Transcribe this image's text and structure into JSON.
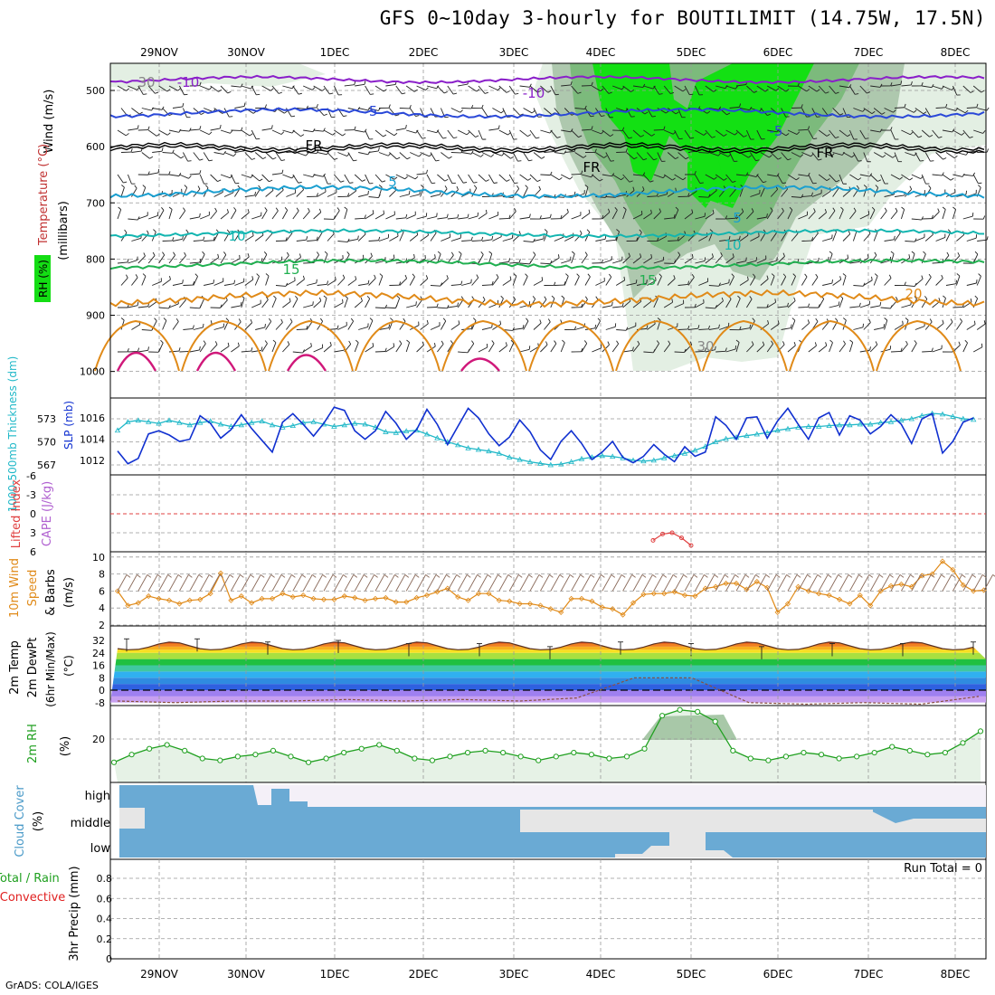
{
  "title": "GFS 0~10day 3-hourly for BOUTILIMIT (14.75W, 17.5N)",
  "footer": "GrADS: COLA/IGES",
  "dates": [
    "29NOV",
    "30NOV",
    "1DEC",
    "2DEC",
    "3DEC",
    "4DEC",
    "5DEC",
    "6DEC",
    "7DEC",
    "8DEC"
  ],
  "colors": {
    "purple": "#8a1fc9",
    "blue": "#2a48d8",
    "teal": "#1a9fd0",
    "cyan": "#12b5b0",
    "green": "#20b050",
    "orange": "#e08a18",
    "magenta": "#d0187a",
    "black": "#000000",
    "rh_light": "#e3efe3",
    "rh_mid": "#aec8ae",
    "rh_dark": "#7cba7c",
    "rh_bright": "#13e013"
  },
  "panels": {
    "upper": {
      "axis_label_rh": "RH (%)",
      "axis_label_temp": "Temperature (°C)",
      "axis_label_wind": "Wind (m/s)",
      "axis_label_units": "(millibars)",
      "yticks": [
        "500",
        "600",
        "700",
        "800",
        "900",
        "1000"
      ],
      "contour_labels": [
        {
          "text": "-10",
          "color": "purple"
        },
        {
          "text": "-10",
          "color": "purple"
        },
        {
          "text": "-5",
          "color": "blue"
        },
        {
          "text": "-5",
          "color": "blue"
        },
        {
          "text": "FR",
          "color": "black"
        },
        {
          "text": "FR",
          "color": "black"
        },
        {
          "text": "FR",
          "color": "black"
        },
        {
          "text": "5",
          "color": "teal"
        },
        {
          "text": "5",
          "color": "teal"
        },
        {
          "text": "10",
          "color": "cyan"
        },
        {
          "text": "10",
          "color": "cyan"
        },
        {
          "text": "15",
          "color": "green"
        },
        {
          "text": "15",
          "color": "green"
        },
        {
          "text": "20",
          "color": "orange"
        },
        {
          "text": "30",
          "color": "grey"
        },
        {
          "text": "30",
          "color": "grey"
        }
      ]
    },
    "slp": {
      "label_thickness": "1000-500mb Thickness (dm)",
      "label_slp": "SLP (mb)",
      "left_ticks": [
        "573",
        "570",
        "567"
      ],
      "right_ticks": [
        "1016",
        "1014",
        "1012"
      ]
    },
    "li": {
      "label_li": "Lifted Index",
      "label_cape": "CAPE (J/kg)",
      "ticks": [
        "-6",
        "-3",
        "0",
        "3",
        "6"
      ]
    },
    "wind10": {
      "label1": "10m Wind",
      "label2": "Speed",
      "label3": "& Barbs",
      "units": "(m/s)",
      "ticks": [
        "10",
        "8",
        "6",
        "4",
        "2"
      ]
    },
    "temp2m": {
      "label1": "2m Temp",
      "label2": "2m DewPt",
      "label3": "(6hr Min/Max)",
      "units": "(°C)",
      "ticks": [
        "32",
        "24",
        "16",
        "8",
        "0",
        "-8"
      ]
    },
    "rh2m": {
      "label": "2m RH",
      "units": "(%)",
      "ticks": [
        "20"
      ]
    },
    "cloud": {
      "label": "Cloud Cover",
      "units": "(%)",
      "levels": [
        "high",
        "middle",
        "low"
      ]
    },
    "precip": {
      "label1": "3hr Precip (mm)",
      "label2": "Total / Rain",
      "label3": "Convective",
      "run_total": "Run Total = 0",
      "ticks": [
        "0.8",
        "0.6",
        "0.4",
        "0.2",
        "0"
      ]
    }
  },
  "chart_data": {
    "type": "meteogram",
    "x_dates": [
      "29NOV",
      "30NOV",
      "1DEC",
      "2DEC",
      "3DEC",
      "4DEC",
      "5DEC",
      "6DEC",
      "7DEC",
      "8DEC"
    ],
    "thickness_dm": [
      571.5,
      572.6,
      572.8,
      572.6,
      572.4,
      572.8,
      572.5,
      572.2,
      572.5,
      572.7,
      572.3,
      572.0,
      572.2,
      572.5,
      572.7,
      572.2,
      571.9,
      572.1,
      572.5,
      572.6,
      572.3,
      572.0,
      572.2,
      572.4,
      572.3,
      571.9,
      571.3,
      571.2,
      571.4,
      571.5,
      571.0,
      570.5,
      570.0,
      569.6,
      569.2,
      569.0,
      568.8,
      568.5,
      568.0,
      567.7,
      567.4,
      567.2,
      567.0,
      567.1,
      567.4,
      567.8,
      568.0,
      568.2,
      568.1,
      567.9,
      567.6,
      567.5,
      567.6,
      567.9,
      568.2,
      568.5,
      568.9,
      569.4,
      570.0,
      570.4,
      570.6,
      570.8,
      571.0,
      571.2,
      571.5,
      571.7,
      571.9,
      572.0,
      572.0,
      572.1,
      572.2,
      572.2,
      572.3,
      572.3,
      572.5,
      572.6,
      572.8,
      573.0,
      573.4,
      573.7,
      573.6,
      573.3,
      573.0,
      572.9
    ],
    "slp_mb": [
      1012.9,
      1011.7,
      1012.2,
      1014.5,
      1014.8,
      1014.4,
      1013.8,
      1014.0,
      1016.2,
      1015.5,
      1014.1,
      1014.9,
      1016.3,
      1015.0,
      1013.9,
      1012.8,
      1015.6,
      1016.4,
      1015.4,
      1014.3,
      1015.5,
      1017.0,
      1016.7,
      1014.8,
      1014.0,
      1014.8,
      1016.6,
      1015.5,
      1014.0,
      1014.9,
      1016.8,
      1015.4,
      1013.5,
      1015.2,
      1016.9,
      1016.0,
      1014.5,
      1013.4,
      1014.2,
      1015.8,
      1014.7,
      1013.0,
      1012.1,
      1013.8,
      1014.8,
      1013.6,
      1012.1,
      1012.8,
      1013.8,
      1012.3,
      1011.8,
      1012.4,
      1013.5,
      1012.6,
      1011.9,
      1013.3,
      1012.4,
      1012.8,
      1016.1,
      1015.3,
      1014.0,
      1016.0,
      1016.1,
      1014.1,
      1015.7,
      1016.9,
      1015.4,
      1014.0,
      1016.0,
      1016.5,
      1014.4,
      1016.2,
      1015.8,
      1014.5,
      1015.2,
      1016.3,
      1015.4,
      1013.6,
      1015.9,
      1016.4,
      1012.7,
      1013.8,
      1015.6,
      1016.0
    ],
    "lifted_index": [
      4.2,
      3.2,
      3.0,
      3.8,
      5.0
    ],
    "wind10_speed_ms": [
      6.0,
      4.3,
      4.6,
      5.4,
      5.1,
      4.9,
      4.5,
      4.9,
      5.0,
      5.7,
      8.1,
      4.9,
      5.4,
      4.6,
      5.1,
      5.1,
      5.7,
      5.3,
      5.5,
      5.1,
      5.0,
      5.0,
      5.4,
      5.2,
      4.9,
      5.1,
      5.2,
      4.7,
      4.7,
      5.2,
      5.5,
      5.9,
      6.3,
      5.3,
      4.9,
      5.7,
      5.7,
      4.9,
      4.8,
      4.5,
      4.5,
      4.3,
      3.9,
      3.5,
      5.1,
      5.1,
      4.8,
      4.1,
      3.9,
      3.2,
      4.6,
      5.6,
      5.7,
      5.7,
      5.9,
      5.5,
      5.4,
      6.3,
      6.5,
      6.9,
      6.9,
      6.2,
      7.1,
      6.4,
      3.5,
      4.5,
      6.5,
      6.0,
      5.7,
      5.5,
      5.0,
      4.5,
      5.5,
      4.3,
      6.0,
      6.6,
      6.8,
      6.5,
      7.8,
      8.0,
      9.5,
      8.5,
      6.7,
      6.0,
      6.1
    ],
    "t2m_max_c": [
      33,
      33,
      31,
      32,
      30,
      30,
      28,
      31,
      30,
      28,
      30,
      30,
      31
    ],
    "dewpt_c": [
      -7,
      -8,
      -7,
      -7,
      -6,
      -7,
      -6,
      -7,
      -5,
      8,
      8,
      -8,
      -9,
      -8,
      -9,
      -4
    ],
    "rh2m_pct": [
      8,
      12,
      15,
      17,
      14,
      10,
      9,
      11,
      12,
      14,
      11,
      8,
      10,
      13,
      15,
      17,
      14,
      10,
      9,
      11,
      13,
      14,
      13,
      11,
      9,
      11,
      13,
      12,
      10,
      11,
      15,
      32,
      35,
      34,
      29,
      14,
      10,
      9,
      11,
      13,
      12,
      10,
      11,
      13,
      16,
      14,
      12,
      13,
      18,
      24
    ],
    "precip_total_mm": 0
  }
}
